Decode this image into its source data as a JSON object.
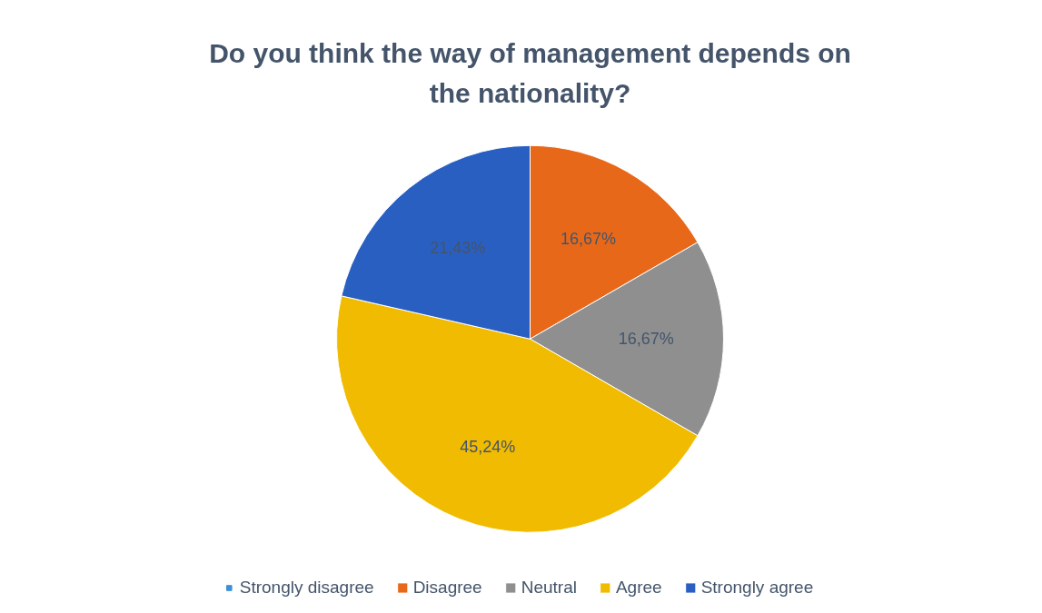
{
  "chart_data": {
    "type": "pie",
    "title": "Do you think the way of management depends on the nationality?",
    "categories": [
      "Strongly disagree",
      "Disagree",
      "Neutral",
      "Agree",
      "Strongly agree"
    ],
    "values": [
      0,
      16.67,
      16.67,
      45.24,
      21.43
    ],
    "colors": [
      "#3d8fd6",
      "#e8681a",
      "#8f8f8f",
      "#f0bb00",
      "#2a5fc2"
    ],
    "value_labels": [
      null,
      "16,67%",
      "16,67%",
      "45,24%",
      "21,43%"
    ],
    "legend": "bottom"
  }
}
